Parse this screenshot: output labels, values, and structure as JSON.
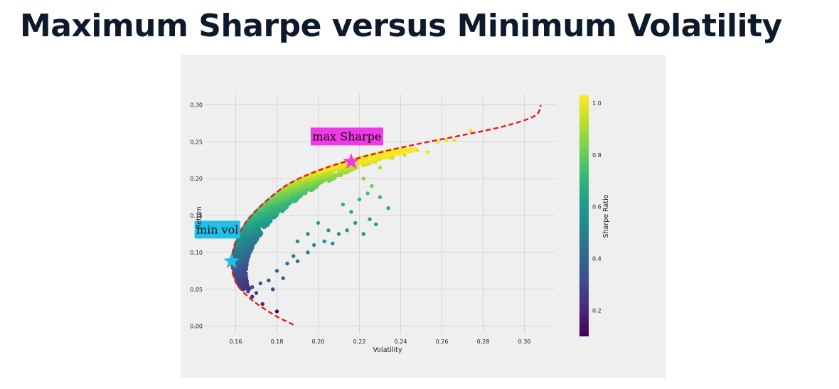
{
  "header": {
    "title": "Maximum Sharpe versus Minimum Volatility"
  },
  "chart_data": {
    "type": "scatter",
    "xlabel": "Volatility",
    "ylabel": "Return",
    "colorbar_label": "Sharpe Ratio",
    "xlim": [
      0.145,
      0.315
    ],
    "ylim": [
      -0.01,
      0.315
    ],
    "x_ticks": [
      "0.16",
      "0.18",
      "0.20",
      "0.22",
      "0.24",
      "0.26",
      "0.28",
      "0.30"
    ],
    "x_tick_values": [
      0.16,
      0.18,
      0.2,
      0.22,
      0.24,
      0.26,
      0.28,
      0.3
    ],
    "y_ticks": [
      "0.00",
      "0.05",
      "0.10",
      "0.15",
      "0.20",
      "0.25",
      "0.30"
    ],
    "y_tick_values": [
      0.0,
      0.05,
      0.1,
      0.15,
      0.2,
      0.25,
      0.3
    ],
    "colorbar_ticks": [
      "0.2",
      "0.4",
      "0.6",
      "0.8",
      "1.0"
    ],
    "colorbar_tick_values": [
      0.2,
      0.4,
      0.6,
      0.8,
      1.0
    ],
    "colorbar_range": [
      0.1,
      1.03
    ],
    "grid": true,
    "colormap": [
      "#440154",
      "#482878",
      "#3e4989",
      "#31688e",
      "#26828e",
      "#1f9e89",
      "#35b779",
      "#6ece58",
      "#b5de2b",
      "#fde725"
    ],
    "frontier": {
      "color": "#e41a1c",
      "style": "dashed",
      "points": [
        [
          0.188,
          0.002
        ],
        [
          0.18,
          0.013
        ],
        [
          0.172,
          0.027
        ],
        [
          0.166,
          0.04
        ],
        [
          0.161,
          0.055
        ],
        [
          0.1587,
          0.07
        ],
        [
          0.158,
          0.085
        ],
        [
          0.1585,
          0.1
        ],
        [
          0.16,
          0.115
        ],
        [
          0.1625,
          0.13
        ],
        [
          0.166,
          0.145
        ],
        [
          0.171,
          0.16
        ],
        [
          0.177,
          0.175
        ],
        [
          0.184,
          0.19
        ],
        [
          0.193,
          0.203
        ],
        [
          0.204,
          0.215
        ],
        [
          0.217,
          0.226
        ],
        [
          0.232,
          0.237
        ],
        [
          0.25,
          0.248
        ],
        [
          0.27,
          0.259
        ],
        [
          0.29,
          0.271
        ],
        [
          0.305,
          0.285
        ],
        [
          0.308,
          0.3
        ]
      ]
    },
    "points": [
      {
        "x": 0.18,
        "y": 0.02,
        "s": 0.12
      },
      {
        "x": 0.173,
        "y": 0.03,
        "s": 0.2
      },
      {
        "x": 0.168,
        "y": 0.04,
        "s": 0.22
      },
      {
        "x": 0.166,
        "y": 0.047,
        "s": 0.28
      },
      {
        "x": 0.17,
        "y": 0.045,
        "s": 0.27
      },
      {
        "x": 0.168,
        "y": 0.053,
        "s": 0.32
      },
      {
        "x": 0.172,
        "y": 0.058,
        "s": 0.34
      },
      {
        "x": 0.176,
        "y": 0.062,
        "s": 0.36
      },
      {
        "x": 0.178,
        "y": 0.05,
        "s": 0.3
      },
      {
        "x": 0.183,
        "y": 0.065,
        "s": 0.38
      },
      {
        "x": 0.18,
        "y": 0.075,
        "s": 0.4
      },
      {
        "x": 0.185,
        "y": 0.085,
        "s": 0.44
      },
      {
        "x": 0.19,
        "y": 0.088,
        "s": 0.46
      },
      {
        "x": 0.188,
        "y": 0.095,
        "s": 0.48
      },
      {
        "x": 0.195,
        "y": 0.1,
        "s": 0.5
      },
      {
        "x": 0.198,
        "y": 0.11,
        "s": 0.54
      },
      {
        "x": 0.203,
        "y": 0.115,
        "s": 0.56
      },
      {
        "x": 0.207,
        "y": 0.112,
        "s": 0.55
      },
      {
        "x": 0.21,
        "y": 0.125,
        "s": 0.58
      },
      {
        "x": 0.214,
        "y": 0.13,
        "s": 0.6
      },
      {
        "x": 0.218,
        "y": 0.14,
        "s": 0.62
      },
      {
        "x": 0.222,
        "y": 0.125,
        "s": 0.58
      },
      {
        "x": 0.225,
        "y": 0.145,
        "s": 0.63
      },
      {
        "x": 0.228,
        "y": 0.138,
        "s": 0.61
      },
      {
        "x": 0.216,
        "y": 0.155,
        "s": 0.66
      },
      {
        "x": 0.212,
        "y": 0.165,
        "s": 0.7
      },
      {
        "x": 0.22,
        "y": 0.172,
        "s": 0.72
      },
      {
        "x": 0.224,
        "y": 0.18,
        "s": 0.76
      },
      {
        "x": 0.226,
        "y": 0.19,
        "s": 0.82
      },
      {
        "x": 0.222,
        "y": 0.2,
        "s": 0.86
      },
      {
        "x": 0.23,
        "y": 0.215,
        "s": 0.92
      },
      {
        "x": 0.236,
        "y": 0.228,
        "s": 0.95
      },
      {
        "x": 0.242,
        "y": 0.232,
        "s": 0.97
      },
      {
        "x": 0.248,
        "y": 0.238,
        "s": 0.99
      },
      {
        "x": 0.253,
        "y": 0.236,
        "s": 0.99
      },
      {
        "x": 0.258,
        "y": 0.25,
        "s": 1.0
      },
      {
        "x": 0.262,
        "y": 0.252,
        "s": 1.0
      },
      {
        "x": 0.266,
        "y": 0.252,
        "s": 1.0
      },
      {
        "x": 0.274,
        "y": 0.265,
        "s": 1.01
      },
      {
        "x": 0.23,
        "y": 0.175,
        "s": 0.74
      },
      {
        "x": 0.234,
        "y": 0.16,
        "s": 0.68
      },
      {
        "x": 0.2,
        "y": 0.14,
        "s": 0.64
      },
      {
        "x": 0.205,
        "y": 0.13,
        "s": 0.6
      },
      {
        "x": 0.195,
        "y": 0.125,
        "s": 0.58
      },
      {
        "x": 0.19,
        "y": 0.115,
        "s": 0.54
      }
    ],
    "dense_cloud": {
      "x_range": [
        0.159,
        0.235
      ],
      "note": "dense band of portfolios following the frontier from the minimum-volatility point to the maximum-Sharpe point"
    },
    "markers": [
      {
        "label": "max Sharpe",
        "x": 0.216,
        "y": 0.223,
        "color": "#ef38e6",
        "label_bg": "#ef38e6"
      },
      {
        "label": "min vol",
        "x": 0.158,
        "y": 0.088,
        "color": "#22bde6",
        "label_bg": "#1fc0ea"
      }
    ]
  }
}
